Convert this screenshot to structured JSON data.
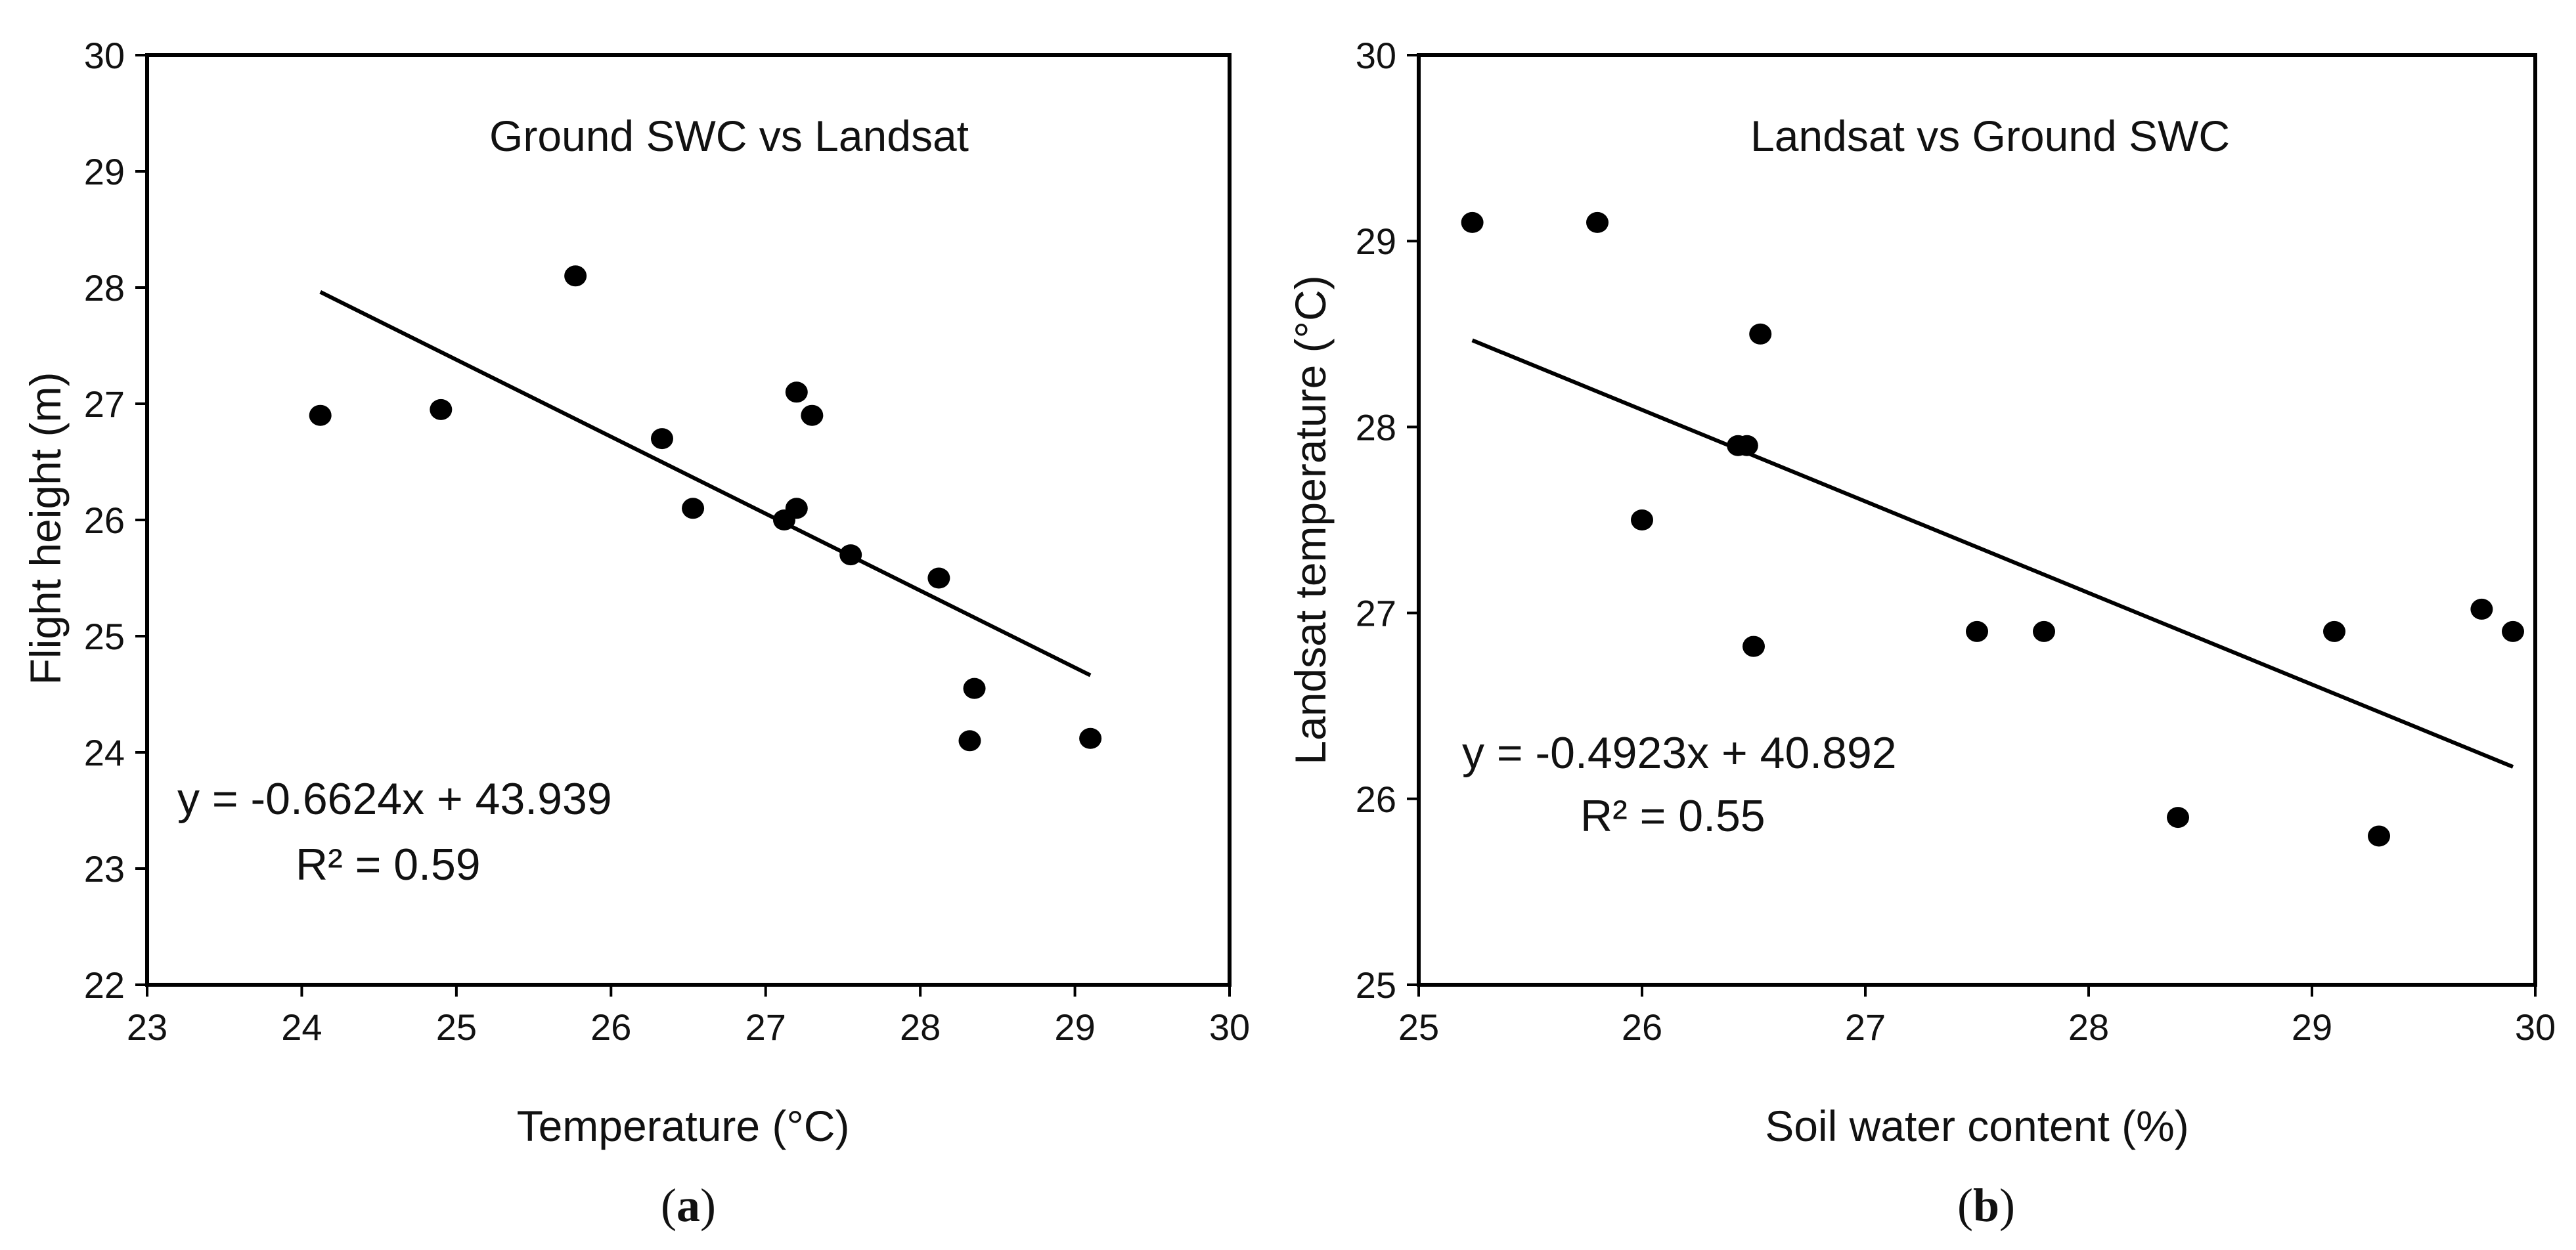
{
  "chart_data": [
    {
      "type": "scatter",
      "panel": "a",
      "title": "Ground SWC vs Landsat",
      "xlabel": "Temperature (°C)",
      "ylabel": "Flight height (m)",
      "xlim": [
        23,
        30
      ],
      "ylim": [
        22,
        30
      ],
      "xticks": [
        23,
        24,
        25,
        26,
        27,
        28,
        29,
        30
      ],
      "yticks": [
        22,
        23,
        24,
        25,
        26,
        27,
        28,
        29,
        30
      ],
      "points": [
        {
          "x": 24.12,
          "y": 26.9
        },
        {
          "x": 24.9,
          "y": 26.95
        },
        {
          "x": 25.77,
          "y": 28.1
        },
        {
          "x": 26.33,
          "y": 26.7
        },
        {
          "x": 26.53,
          "y": 26.1
        },
        {
          "x": 27.12,
          "y": 26.0
        },
        {
          "x": 27.2,
          "y": 27.1
        },
        {
          "x": 27.2,
          "y": 26.1
        },
        {
          "x": 27.3,
          "y": 26.9
        },
        {
          "x": 27.55,
          "y": 25.7
        },
        {
          "x": 28.12,
          "y": 25.5
        },
        {
          "x": 28.32,
          "y": 24.1
        },
        {
          "x": 28.35,
          "y": 24.55
        },
        {
          "x": 29.1,
          "y": 24.12
        }
      ],
      "trendline": {
        "slope": -0.6624,
        "intercept": 43.939,
        "x_range": [
          24.12,
          29.1
        ]
      },
      "equation": "y = -0.6624x + 43.939",
      "r2": "R² = 0.59",
      "caption_open": "(",
      "caption_letter": "a",
      "caption_close": ")"
    },
    {
      "type": "scatter",
      "panel": "b",
      "title": "Landsat vs Ground SWC",
      "xlabel": "Soil water content (%)",
      "ylabel": "Landsat temperature (°C)",
      "xlim": [
        25,
        30
      ],
      "ylim": [
        25,
        30
      ],
      "xticks": [
        25,
        26,
        27,
        28,
        29,
        30
      ],
      "yticks": [
        25,
        26,
        27,
        28,
        29,
        30
      ],
      "points": [
        {
          "x": 25.24,
          "y": 29.1
        },
        {
          "x": 25.8,
          "y": 29.1
        },
        {
          "x": 26.0,
          "y": 27.5
        },
        {
          "x": 26.43,
          "y": 27.9
        },
        {
          "x": 26.47,
          "y": 27.9
        },
        {
          "x": 26.5,
          "y": 26.82
        },
        {
          "x": 26.53,
          "y": 28.5
        },
        {
          "x": 27.5,
          "y": 26.9
        },
        {
          "x": 27.8,
          "y": 26.9
        },
        {
          "x": 28.4,
          "y": 25.9
        },
        {
          "x": 29.1,
          "y": 26.9
        },
        {
          "x": 29.3,
          "y": 25.8
        },
        {
          "x": 29.76,
          "y": 27.02
        },
        {
          "x": 29.9,
          "y": 26.9
        }
      ],
      "trendline": {
        "slope": -0.4923,
        "intercept": 40.892,
        "x_range": [
          25.24,
          29.9
        ]
      },
      "equation": "y = -0.4923x + 40.892",
      "r2": "R² = 0.55",
      "caption_open": "(",
      "caption_letter": "b",
      "caption_close": ")"
    }
  ]
}
